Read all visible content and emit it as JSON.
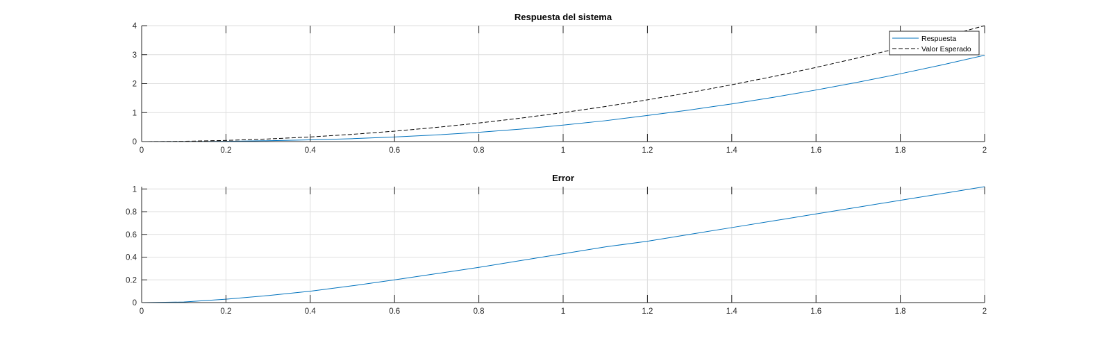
{
  "chart_data": [
    {
      "type": "line",
      "title": "Respuesta del sistema",
      "xlabel": "",
      "ylabel": "",
      "xlim": [
        0,
        2
      ],
      "ylim": [
        0,
        4
      ],
      "xticks": [
        0,
        0.2,
        0.4,
        0.6,
        0.8,
        1,
        1.2,
        1.4,
        1.6,
        1.8,
        2
      ],
      "xtick_labels": [
        "0",
        "0.2",
        "0.4",
        "0.6",
        "0.8",
        "1",
        "1.2",
        "1.4",
        "1.6",
        "1.8",
        "2"
      ],
      "yticks": [
        0,
        1,
        2,
        3,
        4
      ],
      "ytick_labels": [
        "0",
        "1",
        "2",
        "3",
        "4"
      ],
      "grid": true,
      "legend": "top-right",
      "series": [
        {
          "name": "Respuesta",
          "color": "#0072BD",
          "style": "solid",
          "x": [
            0,
            0.1,
            0.2,
            0.3,
            0.4,
            0.5,
            0.6,
            0.7,
            0.8,
            0.9,
            1.0,
            1.1,
            1.2,
            1.3,
            1.4,
            1.5,
            1.6,
            1.7,
            1.8,
            1.9,
            2.0
          ],
          "y": [
            0,
            0.003,
            0.01,
            0.03,
            0.06,
            0.1,
            0.16,
            0.23,
            0.32,
            0.43,
            0.57,
            0.72,
            0.9,
            1.09,
            1.3,
            1.53,
            1.78,
            2.05,
            2.34,
            2.65,
            2.98
          ]
        },
        {
          "name": "Valor Esperado",
          "color": "#000000",
          "style": "dashed",
          "x": [
            0,
            0.1,
            0.2,
            0.3,
            0.4,
            0.5,
            0.6,
            0.7,
            0.8,
            0.9,
            1.0,
            1.1,
            1.2,
            1.3,
            1.4,
            1.5,
            1.6,
            1.7,
            1.8,
            1.9,
            2.0
          ],
          "y": [
            0,
            0.01,
            0.04,
            0.09,
            0.16,
            0.25,
            0.36,
            0.49,
            0.64,
            0.81,
            1.0,
            1.21,
            1.44,
            1.69,
            1.96,
            2.25,
            2.56,
            2.89,
            3.24,
            3.61,
            4.0
          ]
        }
      ]
    },
    {
      "type": "line",
      "title": "Error",
      "xlabel": "",
      "ylabel": "",
      "xlim": [
        0,
        2
      ],
      "ylim": [
        0,
        1.02
      ],
      "xticks": [
        0,
        0.2,
        0.4,
        0.6,
        0.8,
        1,
        1.2,
        1.4,
        1.6,
        1.8,
        2
      ],
      "xtick_labels": [
        "0",
        "0.2",
        "0.4",
        "0.6",
        "0.8",
        "1",
        "1.2",
        "1.4",
        "1.6",
        "1.8",
        "2"
      ],
      "yticks": [
        0,
        0.2,
        0.4,
        0.6,
        0.8,
        1
      ],
      "ytick_labels": [
        "0",
        "0.2",
        "0.4",
        "0.6",
        "0.8",
        "1"
      ],
      "grid": true,
      "legend": "none",
      "series": [
        {
          "name": "Error",
          "color": "#0072BD",
          "style": "solid",
          "x": [
            0,
            0.1,
            0.2,
            0.3,
            0.4,
            0.5,
            0.6,
            0.7,
            0.8,
            0.9,
            1.0,
            1.1,
            1.2,
            1.3,
            1.4,
            1.5,
            1.6,
            1.7,
            1.8,
            1.9,
            2.0
          ],
          "y": [
            0,
            0.005,
            0.03,
            0.062,
            0.1,
            0.148,
            0.2,
            0.255,
            0.31,
            0.37,
            0.43,
            0.49,
            0.54,
            0.6,
            0.66,
            0.72,
            0.78,
            0.84,
            0.9,
            0.96,
            1.02
          ]
        }
      ]
    }
  ]
}
